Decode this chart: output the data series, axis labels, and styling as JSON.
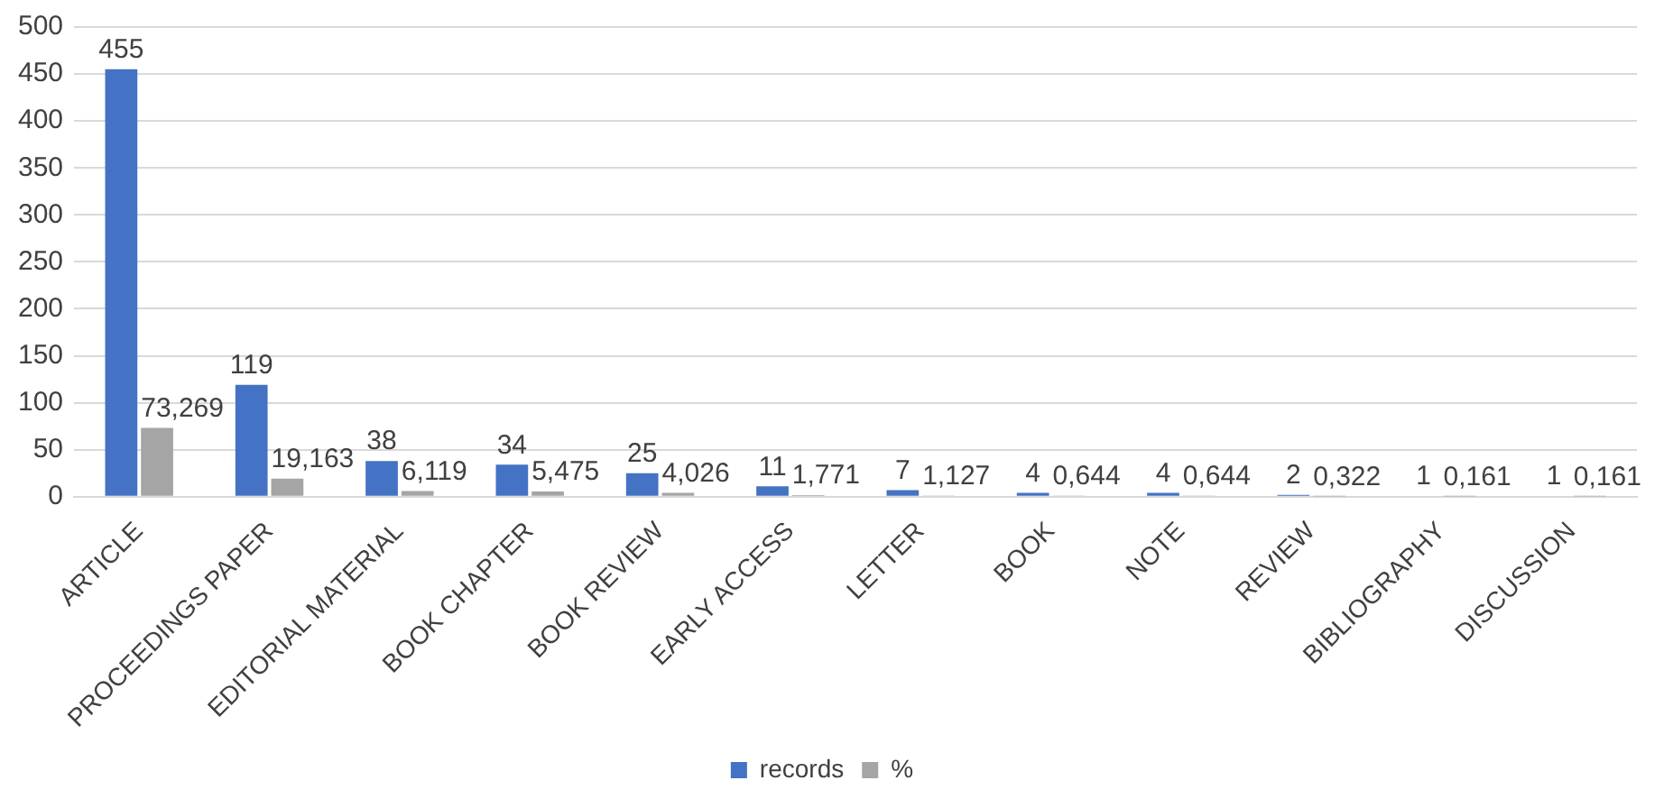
{
  "chart_data": {
    "type": "bar",
    "categories": [
      "ARTICLE",
      "PROCEEDINGS PAPER",
      "EDITORIAL MATERIAL",
      "BOOK CHAPTER",
      "BOOK REVIEW",
      "EARLY ACCESS",
      "LETTER",
      "BOOK",
      "NOTE",
      "REVIEW",
      "BIBLIOGRAPHY",
      "DISCUSSION"
    ],
    "series": [
      {
        "name": "records",
        "color": "#4472c4",
        "values": [
          455,
          119,
          38,
          34,
          25,
          11,
          7,
          4,
          4,
          2,
          1,
          1
        ],
        "value_labels": [
          "455",
          "119",
          "38",
          "34",
          "25",
          "11",
          "7",
          "4",
          "4",
          "2",
          "1",
          "1"
        ]
      },
      {
        "name": "%",
        "color": "#a5a5a5",
        "values": [
          73.269,
          19.163,
          6.119,
          5.475,
          4.026,
          1.771,
          1.127,
          0.644,
          0.644,
          0.322,
          0.161,
          0.161
        ],
        "value_labels": [
          "73,269",
          "19,163",
          "6,119",
          "5,475",
          "4,026",
          "1,771",
          "1,127",
          "0,644",
          "0,644",
          "0,322",
          "0,161",
          "0,161"
        ]
      }
    ],
    "ylim": [
      0,
      500
    ],
    "yticks": [
      0,
      50,
      100,
      150,
      200,
      250,
      300,
      350,
      400,
      450,
      500
    ],
    "grid": "y",
    "legend": "bottom"
  }
}
